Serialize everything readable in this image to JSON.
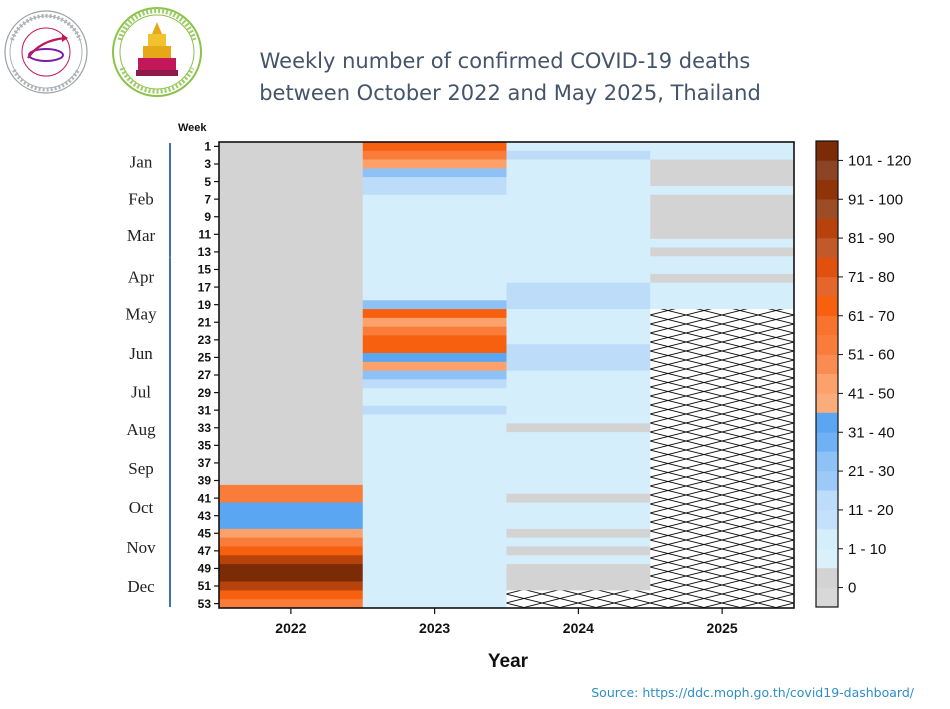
{
  "chart_data": {
    "type": "heatmap",
    "title_lines": [
      "Weekly number of confirmed COVID-19 deaths",
      "between October 2022 and May 2025, Thailand"
    ],
    "xlabel": "Year",
    "ylabel_top": "Week",
    "years": [
      "2022",
      "2023",
      "2024",
      "2025"
    ],
    "week_ticks": [
      "1",
      "3",
      "5",
      "7",
      "9",
      "11",
      "13",
      "15",
      "17",
      "19",
      "21",
      "23",
      "25",
      "27",
      "29",
      "31",
      "33",
      "35",
      "37",
      "39",
      "41",
      "43",
      "45",
      "47",
      "49",
      "51",
      "53"
    ],
    "months": [
      "Jan",
      "Feb",
      "Mar",
      "Apr",
      "May",
      "Jun",
      "Jul",
      "Aug",
      "Sep",
      "Oct",
      "Nov",
      "Dec"
    ],
    "legend": [
      {
        "label": "101 - 120",
        "color": "#7b2b06"
      },
      {
        "label": "91 - 100",
        "color": "#8f3408"
      },
      {
        "label": "81 - 90",
        "color": "#b8420b"
      },
      {
        "label": "71 - 80",
        "color": "#e0510e"
      },
      {
        "label": "61 - 70",
        "color": "#f7600f"
      },
      {
        "label": "51 - 60",
        "color": "#f97c3a"
      },
      {
        "label": "41 - 50",
        "color": "#fba169"
      },
      {
        "label": "31 - 40",
        "color": "#5aa6f3"
      },
      {
        "label": "21 - 30",
        "color": "#8ec2f7"
      },
      {
        "label": "11 - 20",
        "color": "#bddcfa"
      },
      {
        "label": "1 - 10",
        "color": "#d5eefb"
      },
      {
        "label": "0",
        "color": "#d3d3d3"
      }
    ],
    "no_data_color": "#d3d3d3",
    "series": [
      {
        "year": "2022",
        "segments": [
          {
            "from": 1,
            "to": 39,
            "value": null
          },
          {
            "from": 40,
            "to": 41,
            "value": "51 - 60"
          },
          {
            "from": 42,
            "to": 44,
            "value": "31 - 40"
          },
          {
            "from": 45,
            "to": 45,
            "value": "41 - 50"
          },
          {
            "from": 46,
            "to": 46,
            "value": "51 - 60"
          },
          {
            "from": 47,
            "to": 47,
            "value": "61 - 70"
          },
          {
            "from": 48,
            "to": 48,
            "value": "81 - 90"
          },
          {
            "from": 49,
            "to": 50,
            "value": "101 - 120"
          },
          {
            "from": 51,
            "to": 51,
            "value": "81 - 90"
          },
          {
            "from": 52,
            "to": 52,
            "value": "61 - 70"
          },
          {
            "from": 53,
            "to": 53,
            "value": "51 - 60"
          }
        ]
      },
      {
        "year": "2023",
        "segments": [
          {
            "from": 1,
            "to": 1,
            "value": "61 - 70"
          },
          {
            "from": 2,
            "to": 2,
            "value": "51 - 60"
          },
          {
            "from": 3,
            "to": 3,
            "value": "41 - 50"
          },
          {
            "from": 4,
            "to": 4,
            "value": "21 - 30"
          },
          {
            "from": 5,
            "to": 6,
            "value": "11 - 20"
          },
          {
            "from": 7,
            "to": 18,
            "value": "1 - 10"
          },
          {
            "from": 19,
            "to": 19,
            "value": "21 - 30"
          },
          {
            "from": 20,
            "to": 20,
            "value": "61 - 70"
          },
          {
            "from": 21,
            "to": 21,
            "value": "41 - 50"
          },
          {
            "from": 22,
            "to": 22,
            "value": "51 - 60"
          },
          {
            "from": 23,
            "to": 24,
            "value": "61 - 70"
          },
          {
            "from": 25,
            "to": 25,
            "value": "31 - 40"
          },
          {
            "from": 26,
            "to": 26,
            "value": "41 - 50"
          },
          {
            "from": 27,
            "to": 27,
            "value": "21 - 30"
          },
          {
            "from": 28,
            "to": 28,
            "value": "11 - 20"
          },
          {
            "from": 29,
            "to": 30,
            "value": "1 - 10"
          },
          {
            "from": 31,
            "to": 31,
            "value": "11 - 20"
          },
          {
            "from": 32,
            "to": 53,
            "value": "1 - 10"
          }
        ]
      },
      {
        "year": "2024",
        "segments": [
          {
            "from": 1,
            "to": 1,
            "value": "1 - 10"
          },
          {
            "from": 2,
            "to": 2,
            "value": "11 - 20"
          },
          {
            "from": 3,
            "to": 16,
            "value": "1 - 10"
          },
          {
            "from": 17,
            "to": 19,
            "value": "11 - 20"
          },
          {
            "from": 20,
            "to": 23,
            "value": "1 - 10"
          },
          {
            "from": 24,
            "to": 26,
            "value": "11 - 20"
          },
          {
            "from": 27,
            "to": 32,
            "value": "1 - 10"
          },
          {
            "from": 33,
            "to": 33,
            "value": "0"
          },
          {
            "from": 34,
            "to": 40,
            "value": "1 - 10"
          },
          {
            "from": 41,
            "to": 41,
            "value": "0"
          },
          {
            "from": 42,
            "to": 44,
            "value": "1 - 10"
          },
          {
            "from": 45,
            "to": 45,
            "value": "0"
          },
          {
            "from": 46,
            "to": 46,
            "value": "1 - 10"
          },
          {
            "from": 47,
            "to": 47,
            "value": "0"
          },
          {
            "from": 48,
            "to": 48,
            "value": "1 - 10"
          },
          {
            "from": 49,
            "to": 51,
            "value": "0"
          },
          {
            "from": 52,
            "to": 53,
            "value": "not reported"
          }
        ]
      },
      {
        "year": "2025",
        "segments": [
          {
            "from": 1,
            "to": 2,
            "value": "1 - 10"
          },
          {
            "from": 3,
            "to": 5,
            "value": "0"
          },
          {
            "from": 6,
            "to": 6,
            "value": "1 - 10"
          },
          {
            "from": 7,
            "to": 11,
            "value": "0"
          },
          {
            "from": 12,
            "to": 12,
            "value": "1 - 10"
          },
          {
            "from": 13,
            "to": 13,
            "value": "0"
          },
          {
            "from": 14,
            "to": 15,
            "value": "1 - 10"
          },
          {
            "from": 16,
            "to": 16,
            "value": "0"
          },
          {
            "from": 17,
            "to": 19,
            "value": "1 - 10"
          },
          {
            "from": 20,
            "to": 53,
            "value": "not reported"
          }
        ]
      }
    ]
  },
  "source_text": "Source: https://ddc.moph.go.th/covid19-dashboard/"
}
